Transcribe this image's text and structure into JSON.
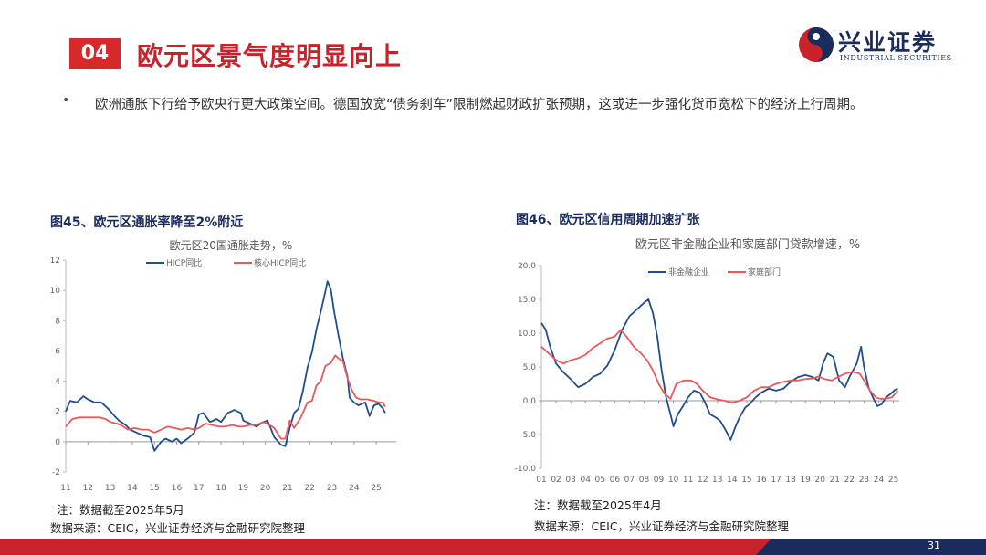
{
  "header": {
    "section_number": "04",
    "title": "欧元区景气度明显向上",
    "logo_cn": "兴业证券",
    "logo_en": "INDUSTRIAL SECURITIES"
  },
  "bullet": "欧洲通胀下行给予欧央行更大政策空间。德国放宽“债务刹车”限制燃起财政扩张预期，这或进一步强化货币宽松下的经济上行周期。",
  "figure45": {
    "caption": "图45、欧元区通胀率降至2%附近",
    "note": "注：数据截至2025年5月",
    "source": "数据来源：CEIC，兴业证券经济与金融研究院整理"
  },
  "figure46": {
    "caption": "图46、欧元区信用周期加速扩张",
    "note": "注：数据截至2025年4月",
    "source": "数据来源：CEIC，兴业证券经济与金融研究院整理"
  },
  "page_number": "31",
  "colors": {
    "accent_red": "#d62a2a",
    "navy": "#1a2b5e",
    "series_blue": "#1f4e8c",
    "series_red": "#e8595c"
  },
  "chart_data": [
    {
      "type": "line",
      "title": "欧元区20国通胀走势，%",
      "xlabel": "",
      "ylabel": "",
      "ylim": [
        -2,
        12
      ],
      "yticks": [
        "-2",
        "0",
        "2",
        "4",
        "6",
        "8",
        "10",
        "12"
      ],
      "xlim": [
        2011,
        2025.9
      ],
      "xticks": [
        "11",
        "12",
        "13",
        "14",
        "15",
        "16",
        "17",
        "18",
        "19",
        "20",
        "21",
        "22",
        "23",
        "24",
        "25"
      ],
      "legend": "top-center",
      "series": [
        {
          "name": "HICP同比",
          "color": "#1f4e8c",
          "points": [
            [
              2011.0,
              2.0
            ],
            [
              2011.2,
              2.7
            ],
            [
              2011.5,
              2.6
            ],
            [
              2011.8,
              3.0
            ],
            [
              2012.0,
              2.8
            ],
            [
              2012.3,
              2.6
            ],
            [
              2012.6,
              2.6
            ],
            [
              2012.9,
              2.2
            ],
            [
              2013.2,
              1.7
            ],
            [
              2013.4,
              1.4
            ],
            [
              2013.7,
              1.1
            ],
            [
              2013.9,
              0.8
            ],
            [
              2014.2,
              0.6
            ],
            [
              2014.5,
              0.4
            ],
            [
              2014.8,
              0.3
            ],
            [
              2015.0,
              -0.6
            ],
            [
              2015.3,
              0.0
            ],
            [
              2015.5,
              0.2
            ],
            [
              2015.8,
              0.0
            ],
            [
              2016.0,
              0.2
            ],
            [
              2016.2,
              -0.1
            ],
            [
              2016.5,
              0.2
            ],
            [
              2016.8,
              0.6
            ],
            [
              2017.0,
              1.8
            ],
            [
              2017.2,
              1.9
            ],
            [
              2017.5,
              1.3
            ],
            [
              2017.8,
              1.5
            ],
            [
              2018.0,
              1.3
            ],
            [
              2018.3,
              1.9
            ],
            [
              2018.6,
              2.1
            ],
            [
              2018.9,
              1.9
            ],
            [
              2019.0,
              1.4
            ],
            [
              2019.3,
              1.2
            ],
            [
              2019.6,
              1.0
            ],
            [
              2019.9,
              1.3
            ],
            [
              2020.1,
              1.4
            ],
            [
              2020.4,
              0.3
            ],
            [
              2020.7,
              -0.2
            ],
            [
              2020.9,
              -0.3
            ],
            [
              2021.1,
              0.9
            ],
            [
              2021.3,
              1.9
            ],
            [
              2021.5,
              2.2
            ],
            [
              2021.7,
              3.4
            ],
            [
              2021.9,
              4.9
            ],
            [
              2022.1,
              5.9
            ],
            [
              2022.3,
              7.4
            ],
            [
              2022.5,
              8.6
            ],
            [
              2022.7,
              9.9
            ],
            [
              2022.8,
              10.6
            ],
            [
              2022.95,
              10.1
            ],
            [
              2023.1,
              8.6
            ],
            [
              2023.3,
              7.0
            ],
            [
              2023.5,
              5.5
            ],
            [
              2023.7,
              4.3
            ],
            [
              2023.8,
              2.9
            ],
            [
              2024.0,
              2.6
            ],
            [
              2024.2,
              2.4
            ],
            [
              2024.5,
              2.6
            ],
            [
              2024.7,
              1.7
            ],
            [
              2024.9,
              2.4
            ],
            [
              2025.1,
              2.5
            ],
            [
              2025.3,
              2.2
            ],
            [
              2025.4,
              1.9
            ]
          ]
        },
        {
          "name": "核心HICP同比",
          "color": "#e8595c",
          "points": [
            [
              2011.0,
              1.0
            ],
            [
              2011.3,
              1.5
            ],
            [
              2011.6,
              1.6
            ],
            [
              2011.9,
              1.6
            ],
            [
              2012.2,
              1.6
            ],
            [
              2012.5,
              1.6
            ],
            [
              2012.8,
              1.5
            ],
            [
              2013.0,
              1.3
            ],
            [
              2013.3,
              1.2
            ],
            [
              2013.5,
              1.1
            ],
            [
              2013.8,
              0.8
            ],
            [
              2014.1,
              0.9
            ],
            [
              2014.4,
              0.8
            ],
            [
              2014.7,
              0.8
            ],
            [
              2015.0,
              0.6
            ],
            [
              2015.3,
              0.8
            ],
            [
              2015.6,
              1.0
            ],
            [
              2015.9,
              0.9
            ],
            [
              2016.2,
              0.8
            ],
            [
              2016.5,
              0.9
            ],
            [
              2016.8,
              0.8
            ],
            [
              2017.0,
              0.9
            ],
            [
              2017.3,
              1.2
            ],
            [
              2017.6,
              1.1
            ],
            [
              2017.9,
              1.0
            ],
            [
              2018.2,
              1.0
            ],
            [
              2018.5,
              1.1
            ],
            [
              2018.8,
              1.0
            ],
            [
              2019.0,
              1.0
            ],
            [
              2019.3,
              1.1
            ],
            [
              2019.6,
              1.1
            ],
            [
              2019.9,
              1.3
            ],
            [
              2020.1,
              1.2
            ],
            [
              2020.4,
              0.9
            ],
            [
              2020.7,
              0.2
            ],
            [
              2020.9,
              0.2
            ],
            [
              2021.1,
              1.4
            ],
            [
              2021.3,
              0.9
            ],
            [
              2021.6,
              1.6
            ],
            [
              2021.9,
              2.6
            ],
            [
              2022.1,
              2.7
            ],
            [
              2022.3,
              3.7
            ],
            [
              2022.5,
              4.0
            ],
            [
              2022.7,
              5.0
            ],
            [
              2022.95,
              5.2
            ],
            [
              2023.15,
              5.7
            ],
            [
              2023.3,
              5.5
            ],
            [
              2023.5,
              5.3
            ],
            [
              2023.7,
              4.2
            ],
            [
              2023.9,
              3.4
            ],
            [
              2024.1,
              2.9
            ],
            [
              2024.3,
              2.8
            ],
            [
              2024.6,
              2.8
            ],
            [
              2024.9,
              2.7
            ],
            [
              2025.1,
              2.6
            ],
            [
              2025.3,
              2.6
            ],
            [
              2025.4,
              2.3
            ]
          ]
        }
      ]
    },
    {
      "type": "line",
      "title": "欧元区非金融企业和家庭部门贷款增速，%",
      "xlabel": "",
      "ylabel": "",
      "ylim": [
        -10,
        20
      ],
      "yticks": [
        "-10.0",
        "-5.0",
        "0.0",
        "5.0",
        "10.0",
        "15.0",
        "20.0"
      ],
      "xlim": [
        2001,
        2025.4
      ],
      "xticks": [
        "01",
        "02",
        "03",
        "04",
        "05",
        "06",
        "07",
        "08",
        "09",
        "10",
        "11",
        "12",
        "13",
        "14",
        "15",
        "16",
        "17",
        "18",
        "19",
        "20",
        "21",
        "22",
        "23",
        "24",
        "25"
      ],
      "legend": "top-center",
      "series": [
        {
          "name": "非金融企业",
          "color": "#1f4e8c",
          "points": [
            [
              2001.0,
              11.5
            ],
            [
              2001.3,
              10.5
            ],
            [
              2001.6,
              8.0
            ],
            [
              2002.0,
              5.5
            ],
            [
              2002.5,
              4.2
            ],
            [
              2003.0,
              3.2
            ],
            [
              2003.5,
              2.0
            ],
            [
              2004.0,
              2.5
            ],
            [
              2004.5,
              3.5
            ],
            [
              2005.0,
              4.0
            ],
            [
              2005.5,
              5.2
            ],
            [
              2006.0,
              7.5
            ],
            [
              2006.5,
              10.5
            ],
            [
              2007.0,
              12.5
            ],
            [
              2007.5,
              13.5
            ],
            [
              2008.0,
              14.5
            ],
            [
              2008.3,
              15.0
            ],
            [
              2008.6,
              13.0
            ],
            [
              2008.9,
              9.5
            ],
            [
              2009.2,
              4.5
            ],
            [
              2009.5,
              0.5
            ],
            [
              2009.8,
              -2.0
            ],
            [
              2010.0,
              -3.8
            ],
            [
              2010.3,
              -2.0
            ],
            [
              2010.6,
              -1.0
            ],
            [
              2011.0,
              0.5
            ],
            [
              2011.4,
              1.5
            ],
            [
              2011.8,
              1.2
            ],
            [
              2012.1,
              0.0
            ],
            [
              2012.5,
              -2.0
            ],
            [
              2012.9,
              -2.5
            ],
            [
              2013.2,
              -3.0
            ],
            [
              2013.6,
              -4.5
            ],
            [
              2013.9,
              -5.8
            ],
            [
              2014.2,
              -4.0
            ],
            [
              2014.5,
              -2.5
            ],
            [
              2014.9,
              -1.0
            ],
            [
              2015.2,
              -0.5
            ],
            [
              2015.6,
              0.5
            ],
            [
              2016.0,
              1.2
            ],
            [
              2016.5,
              1.8
            ],
            [
              2017.0,
              1.5
            ],
            [
              2017.5,
              1.8
            ],
            [
              2018.0,
              2.8
            ],
            [
              2018.5,
              3.5
            ],
            [
              2019.0,
              3.8
            ],
            [
              2019.5,
              3.5
            ],
            [
              2019.9,
              3.0
            ],
            [
              2020.2,
              5.5
            ],
            [
              2020.5,
              7.0
            ],
            [
              2020.9,
              6.5
            ],
            [
              2021.3,
              3.0
            ],
            [
              2021.7,
              2.0
            ],
            [
              2022.0,
              3.5
            ],
            [
              2022.5,
              5.5
            ],
            [
              2022.8,
              8.0
            ],
            [
              2023.0,
              5.0
            ],
            [
              2023.3,
              2.0
            ],
            [
              2023.6,
              0.5
            ],
            [
              2023.9,
              -0.8
            ],
            [
              2024.2,
              -0.5
            ],
            [
              2024.5,
              0.5
            ],
            [
              2024.8,
              1.0
            ],
            [
              2025.1,
              1.6
            ],
            [
              2025.3,
              1.8
            ]
          ]
        },
        {
          "name": "家庭部门",
          "color": "#e8595c",
          "points": [
            [
              2001.0,
              8.0
            ],
            [
              2001.5,
              7.0
            ],
            [
              2002.0,
              6.0
            ],
            [
              2002.5,
              5.5
            ],
            [
              2003.0,
              6.0
            ],
            [
              2003.5,
              6.3
            ],
            [
              2004.0,
              6.8
            ],
            [
              2004.5,
              7.8
            ],
            [
              2005.0,
              8.5
            ],
            [
              2005.5,
              9.2
            ],
            [
              2006.0,
              9.5
            ],
            [
              2006.4,
              10.5
            ],
            [
              2006.8,
              9.5
            ],
            [
              2007.3,
              8.0
            ],
            [
              2007.8,
              7.0
            ],
            [
              2008.2,
              6.0
            ],
            [
              2008.6,
              4.5
            ],
            [
              2009.0,
              2.5
            ],
            [
              2009.4,
              1.0
            ],
            [
              2009.8,
              0.3
            ],
            [
              2010.2,
              2.5
            ],
            [
              2010.7,
              3.0
            ],
            [
              2011.2,
              3.0
            ],
            [
              2011.6,
              2.5
            ],
            [
              2012.0,
              1.5
            ],
            [
              2012.5,
              0.5
            ],
            [
              2013.0,
              0.2
            ],
            [
              2013.5,
              0.0
            ],
            [
              2014.0,
              -0.3
            ],
            [
              2014.5,
              0.0
            ],
            [
              2015.0,
              0.5
            ],
            [
              2015.5,
              1.5
            ],
            [
              2016.0,
              2.0
            ],
            [
              2016.5,
              2.0
            ],
            [
              2017.0,
              2.5
            ],
            [
              2017.5,
              2.8
            ],
            [
              2018.0,
              3.0
            ],
            [
              2018.5,
              3.0
            ],
            [
              2019.0,
              3.2
            ],
            [
              2019.5,
              3.3
            ],
            [
              2019.9,
              3.6
            ],
            [
              2020.3,
              3.2
            ],
            [
              2020.8,
              3.0
            ],
            [
              2021.2,
              3.5
            ],
            [
              2021.7,
              4.0
            ],
            [
              2022.2,
              4.3
            ],
            [
              2022.7,
              4.0
            ],
            [
              2023.0,
              3.0
            ],
            [
              2023.4,
              1.5
            ],
            [
              2023.8,
              0.5
            ],
            [
              2024.1,
              0.3
            ],
            [
              2024.5,
              0.3
            ],
            [
              2024.9,
              0.5
            ],
            [
              2025.3,
              1.5
            ]
          ]
        }
      ]
    }
  ]
}
